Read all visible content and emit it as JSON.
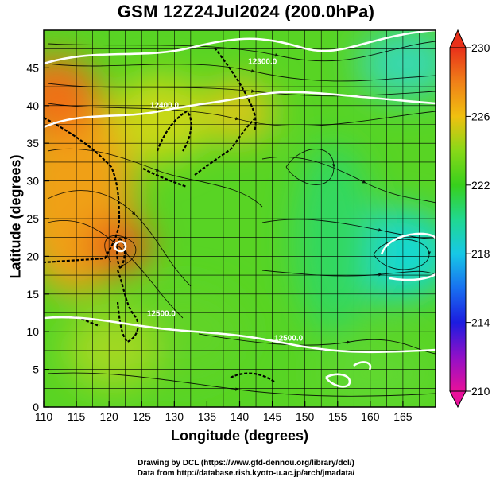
{
  "title": "GSM 12Z24Jul2024 (200.0hPa)",
  "xlabel": "Longitude (degrees)",
  "ylabel": "Latitude (degrees)",
  "credits": [
    "Drawing by DCL (https://www.gfd-dennou.org/library/dcl/)",
    "Data from http://database.rish.kyoto-u.ac.jp/arch/jmadata/"
  ],
  "map": {
    "lon_range": [
      110,
      170
    ],
    "lat_range": [
      0,
      50
    ],
    "lon_ticks": [
      110,
      115,
      120,
      125,
      130,
      135,
      140,
      145,
      150,
      155,
      160,
      165
    ],
    "lat_ticks": [
      0,
      5,
      10,
      15,
      20,
      25,
      30,
      35,
      40,
      45
    ],
    "grid_step_deg": 2.5,
    "contour_labels": [
      {
        "text": "12300.0",
        "lon": 143.5,
        "lat": 45.5
      },
      {
        "text": "12400.0",
        "lon": 128.5,
        "lat": 39.7
      },
      {
        "text": "12500.0",
        "lon": 128.0,
        "lat": 12.1
      },
      {
        "text": "12500.0",
        "lon": 147.5,
        "lat": 8.8
      }
    ]
  },
  "colorbar": {
    "min": 210,
    "max": 230,
    "ticks": [
      210,
      214,
      218,
      222,
      226,
      230
    ],
    "colors": [
      "#e8109a",
      "#1c1ce0",
      "#17c8e6",
      "#38d01c",
      "#f0c010",
      "#e8401a"
    ]
  }
}
